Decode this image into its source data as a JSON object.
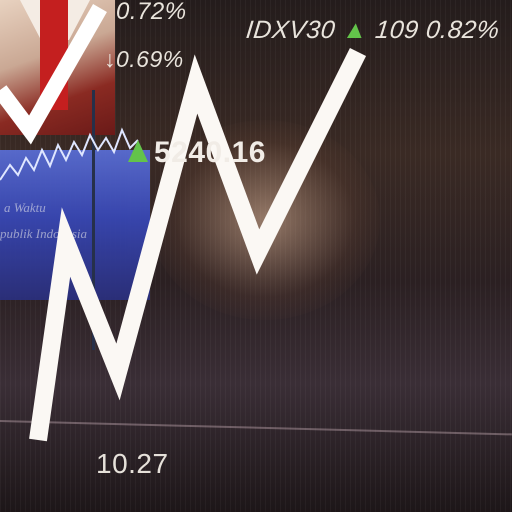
{
  "ticker": {
    "top_percent": "0.72%",
    "second_line": "↓0.69%",
    "index_name": "IDXV30",
    "index_arrow": "▲",
    "index_change": "109",
    "index_percent": "0.82%",
    "composite_value": "5240.16",
    "bottom_value": "10.27"
  },
  "panel": {
    "line1": "a Waktu",
    "line2": "publik Indonesia"
  },
  "colors": {
    "up_arrow": "#63c34a",
    "line": "#ffffff",
    "panel_blue": "#3848b8",
    "tie_red": "#c41f1f"
  }
}
